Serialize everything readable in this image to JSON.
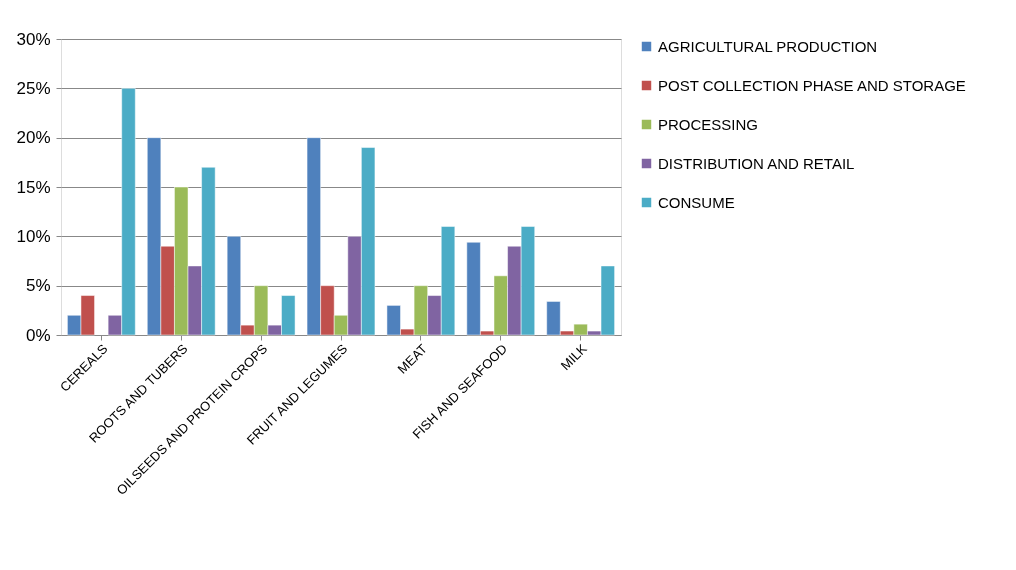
{
  "chart_data": {
    "type": "bar",
    "categories": [
      "CEREALS",
      "ROOTS AND TUBERS",
      "OILSEEDS AND PROTEIN CROPS",
      "FRUIT AND LEGUMES",
      "MEAT",
      "FISH AND SEAFOOD",
      "MILK"
    ],
    "series": [
      {
        "name": "AGRICULTURAL PRODUCTION",
        "color": "#4f81bd",
        "values": [
          2,
          20,
          10,
          20,
          3,
          9.4,
          3.4
        ]
      },
      {
        "name": "POST COLLECTION PHASE AND STORAGE",
        "color": "#c0504d",
        "values": [
          4,
          9,
          1,
          5,
          0.6,
          0.4,
          0.4
        ]
      },
      {
        "name": "PROCESSING",
        "color": "#9bbb59",
        "values": [
          null,
          15,
          5,
          2,
          5,
          6,
          1.1
        ]
      },
      {
        "name": "DISTRIBUTION AND RETAIL",
        "color": "#8064a2",
        "values": [
          2,
          7,
          1,
          10,
          4,
          9,
          0.4
        ]
      },
      {
        "name": "CONSUME",
        "color": "#4bacc6",
        "values": [
          25,
          17,
          4,
          19,
          11,
          11,
          7
        ]
      }
    ],
    "ylim": [
      0,
      30
    ],
    "yticks": [
      {
        "value": 0,
        "label": "0%"
      },
      {
        "value": 5,
        "label": "5%"
      },
      {
        "value": 10,
        "label": "10%"
      },
      {
        "value": 15,
        "label": "15%"
      },
      {
        "value": 20,
        "label": "20%"
      },
      {
        "value": 25,
        "label": "25%"
      },
      {
        "value": 30,
        "label": "30%"
      }
    ],
    "grid": "y",
    "legend": "right"
  }
}
